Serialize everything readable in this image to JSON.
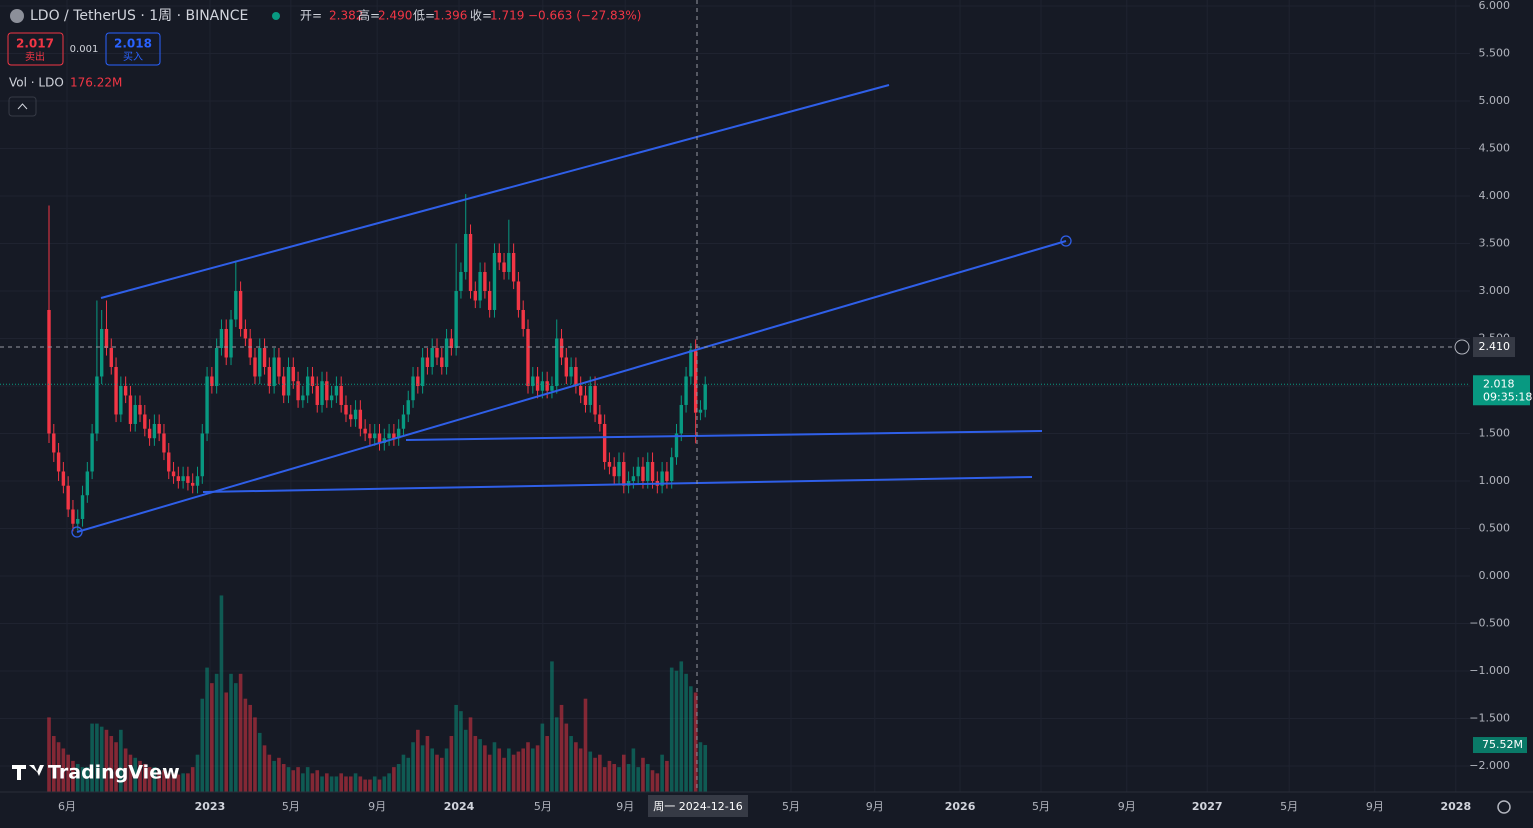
{
  "header": {
    "symbol": "LDO / TetherUS · 1周 · BINANCE",
    "ohlc": [
      {
        "label": "开=",
        "value": "2.382"
      },
      {
        "label": "高=",
        "value": "2.490"
      },
      {
        "label": "低=",
        "value": "1.396"
      },
      {
        "label": "收=",
        "value": "1.719"
      }
    ],
    "change": "−0.663 (−27.83%)"
  },
  "trade": {
    "sell_price": "2.017",
    "sell": "卖出",
    "spread": "0.001",
    "buy_price": "2.018",
    "buy": "买入"
  },
  "volume_legend": {
    "name": "Vol · LDO",
    "value": "176.22M"
  },
  "logo": "TradingView",
  "chart_data": {
    "type": "candlestick",
    "up_color": "#089981",
    "down_color": "#f23645",
    "open": [
      2.8,
      1.5,
      1.3,
      1.1,
      0.95,
      0.7,
      0.55,
      0.6,
      0.85,
      1.1,
      1.5,
      2.1,
      2.6,
      2.4,
      2.2,
      1.7,
      2.0,
      1.9,
      1.6,
      1.8,
      1.7,
      1.55,
      1.45,
      1.6,
      1.5,
      1.3,
      1.1,
      1.05,
      1.0,
      1.05,
      0.98,
      0.95,
      1.05,
      1.5,
      2.1,
      2.0,
      2.4,
      2.6,
      2.3,
      2.7,
      3.0,
      2.6,
      2.5,
      2.3,
      2.1,
      2.4,
      2.2,
      2.0,
      2.3,
      2.1,
      1.9,
      2.2,
      2.05,
      1.85,
      1.9,
      2.1,
      2.0,
      1.8,
      2.05,
      1.85,
      1.9,
      2.0,
      1.8,
      1.7,
      1.65,
      1.75,
      1.55,
      1.5,
      1.45,
      1.5,
      1.4,
      1.45,
      1.5,
      1.45,
      1.55,
      1.7,
      1.85,
      2.1,
      2.0,
      2.3,
      2.2,
      2.4,
      2.3,
      2.2,
      2.5,
      2.4,
      3.0,
      3.2,
      3.6,
      3.0,
      2.9,
      3.2,
      3.0,
      2.8,
      3.4,
      3.3,
      3.2,
      3.4,
      3.1,
      2.8,
      2.6,
      2.0,
      2.1,
      1.95,
      2.05,
      1.95,
      2.0,
      2.5,
      2.3,
      2.1,
      2.2,
      2.0,
      1.9,
      1.8,
      2.0,
      1.7,
      1.6,
      1.2,
      1.15,
      1.05,
      1.2,
      0.95,
      1.0,
      1.05,
      1.15,
      1.0,
      1.2,
      1.0,
      0.95,
      1.1,
      1.0,
      1.25,
      1.5,
      1.8,
      2.1,
      2.382,
      1.719,
      1.75
    ],
    "high": [
      3.9,
      1.6,
      1.4,
      1.2,
      1.05,
      0.8,
      0.7,
      0.95,
      1.2,
      1.6,
      2.9,
      2.8,
      2.9,
      2.5,
      2.3,
      2.1,
      2.1,
      2.0,
      1.9,
      1.9,
      1.8,
      1.65,
      1.7,
      1.7,
      1.6,
      1.4,
      1.2,
      1.15,
      1.15,
      1.15,
      1.08,
      1.15,
      1.6,
      2.2,
      2.2,
      2.5,
      2.7,
      2.7,
      2.8,
      3.32,
      3.1,
      2.7,
      2.6,
      2.4,
      2.5,
      2.5,
      2.3,
      2.4,
      2.4,
      2.2,
      2.3,
      2.3,
      2.15,
      2.0,
      2.2,
      2.2,
      2.1,
      2.15,
      2.15,
      2.0,
      2.1,
      2.1,
      1.9,
      1.8,
      1.85,
      1.85,
      1.65,
      1.6,
      1.6,
      1.6,
      1.55,
      1.6,
      1.6,
      1.65,
      1.8,
      1.95,
      2.2,
      2.2,
      2.4,
      2.4,
      2.5,
      2.5,
      2.4,
      2.6,
      2.6,
      3.5,
      3.3,
      4.02,
      3.7,
      3.1,
      3.3,
      3.3,
      3.1,
      3.5,
      3.5,
      3.4,
      3.75,
      3.5,
      3.2,
      2.9,
      2.7,
      2.2,
      2.2,
      2.15,
      2.15,
      2.1,
      2.7,
      2.6,
      2.4,
      2.3,
      2.3,
      2.1,
      2.0,
      2.1,
      2.1,
      1.8,
      1.7,
      1.3,
      1.25,
      1.3,
      1.3,
      1.1,
      1.15,
      1.25,
      1.25,
      1.3,
      1.3,
      1.1,
      1.2,
      1.2,
      1.35,
      1.6,
      1.9,
      2.2,
      2.45,
      2.49,
      1.85,
      2.1
    ],
    "low": [
      1.4,
      1.2,
      1.0,
      0.87,
      0.62,
      0.47,
      0.48,
      0.52,
      0.77,
      1.02,
      1.42,
      2.02,
      2.32,
      2.12,
      1.62,
      1.62,
      1.82,
      1.52,
      1.52,
      1.62,
      1.47,
      1.37,
      1.37,
      1.42,
      1.22,
      1.02,
      0.97,
      0.92,
      0.92,
      0.9,
      0.87,
      0.87,
      0.97,
      1.42,
      1.92,
      1.92,
      2.32,
      2.22,
      2.22,
      2.62,
      2.52,
      2.42,
      2.22,
      2.02,
      2.02,
      2.12,
      1.92,
      1.92,
      2.02,
      1.82,
      1.82,
      1.97,
      1.77,
      1.77,
      1.82,
      1.92,
      1.72,
      1.72,
      1.77,
      1.77,
      1.82,
      1.72,
      1.62,
      1.57,
      1.57,
      1.47,
      1.42,
      1.37,
      1.37,
      1.32,
      1.32,
      1.37,
      1.37,
      1.37,
      1.47,
      1.62,
      1.77,
      1.92,
      1.92,
      2.12,
      2.12,
      2.22,
      2.12,
      2.12,
      2.32,
      2.32,
      2.92,
      3.12,
      2.92,
      2.82,
      2.82,
      2.92,
      2.72,
      2.72,
      3.22,
      3.12,
      3.12,
      3.02,
      2.72,
      2.52,
      1.92,
      1.92,
      1.87,
      1.87,
      1.87,
      1.87,
      1.92,
      2.22,
      2.02,
      2.02,
      1.92,
      1.82,
      1.72,
      1.72,
      1.62,
      1.52,
      1.12,
      1.07,
      0.97,
      0.97,
      0.87,
      0.87,
      0.92,
      0.97,
      0.92,
      0.92,
      0.92,
      0.87,
      0.87,
      0.92,
      0.92,
      1.17,
      1.42,
      1.72,
      2.02,
      1.396,
      1.64,
      1.67
    ],
    "close": [
      1.5,
      1.3,
      1.1,
      0.95,
      0.7,
      0.55,
      0.6,
      0.85,
      1.1,
      1.5,
      2.1,
      2.6,
      2.4,
      2.2,
      1.7,
      2.0,
      1.9,
      1.6,
      1.8,
      1.7,
      1.55,
      1.45,
      1.6,
      1.5,
      1.3,
      1.1,
      1.05,
      1.0,
      1.05,
      0.98,
      0.95,
      1.05,
      1.5,
      2.1,
      2.0,
      2.4,
      2.6,
      2.3,
      2.7,
      3.0,
      2.6,
      2.5,
      2.3,
      2.1,
      2.4,
      2.2,
      2.0,
      2.3,
      2.1,
      1.9,
      2.2,
      2.05,
      1.85,
      1.9,
      2.1,
      2.0,
      1.8,
      2.05,
      1.85,
      1.9,
      2.0,
      1.8,
      1.7,
      1.65,
      1.75,
      1.55,
      1.5,
      1.45,
      1.5,
      1.4,
      1.45,
      1.5,
      1.45,
      1.55,
      1.7,
      1.85,
      2.1,
      2.0,
      2.3,
      2.2,
      2.4,
      2.3,
      2.2,
      2.5,
      2.4,
      3.0,
      3.2,
      3.6,
      3.0,
      2.9,
      3.2,
      3.0,
      2.8,
      3.4,
      3.3,
      3.2,
      3.4,
      3.1,
      2.8,
      2.6,
      2.0,
      2.1,
      1.95,
      2.05,
      1.95,
      2.0,
      2.5,
      2.3,
      2.1,
      2.2,
      2.0,
      1.9,
      1.8,
      2.0,
      1.7,
      1.6,
      1.2,
      1.15,
      1.05,
      1.2,
      0.95,
      1.0,
      1.05,
      1.15,
      1.0,
      1.2,
      1.0,
      0.95,
      1.1,
      1.0,
      1.25,
      1.5,
      1.8,
      2.1,
      2.382,
      1.719,
      1.75,
      2.018
    ],
    "volume": [
      120,
      90,
      80,
      70,
      60,
      50,
      45,
      40,
      40,
      110,
      110,
      105,
      100,
      90,
      80,
      100,
      70,
      60,
      55,
      50,
      45,
      40,
      40,
      35,
      35,
      30,
      30,
      28,
      30,
      30,
      40,
      60,
      150,
      200,
      175,
      190,
      316,
      160,
      190,
      175,
      190,
      150,
      140,
      120,
      95,
      75,
      60,
      50,
      55,
      45,
      40,
      35,
      40,
      30,
      40,
      30,
      35,
      25,
      30,
      25,
      25,
      30,
      25,
      25,
      30,
      25,
      20,
      20,
      25,
      20,
      25,
      30,
      40,
      45,
      60,
      55,
      80,
      100,
      75,
      90,
      70,
      60,
      55,
      70,
      90,
      140,
      130,
      100,
      120,
      90,
      85,
      75,
      60,
      80,
      70,
      55,
      70,
      60,
      65,
      70,
      80,
      70,
      75,
      110,
      90,
      210,
      120,
      140,
      110,
      90,
      80,
      70,
      150,
      65,
      55,
      60,
      40,
      50,
      45,
      40,
      60,
      45,
      70,
      40,
      55,
      45,
      35,
      30,
      60,
      50,
      200,
      195,
      210,
      190,
      170,
      160,
      80,
      75.52
    ],
    "volume_label": "75.52M",
    "volume_ylim": [
      0,
      500
    ],
    "ylim": [
      -2.274,
      6.063
    ],
    "yticks": [
      {
        "value": 6,
        "label": "6.000"
      },
      {
        "value": 5.5,
        "label": "5.500"
      },
      {
        "value": 5,
        "label": "5.000"
      },
      {
        "value": 4.5,
        "label": "4.500"
      },
      {
        "value": 4,
        "label": "4.000"
      },
      {
        "value": 3.5,
        "label": "3.500"
      },
      {
        "value": 3,
        "label": "3.000"
      },
      {
        "value": 2.5,
        "label": "2.500"
      },
      {
        "value": 2,
        "label": "2.000"
      },
      {
        "value": 1.5,
        "label": "1.500"
      },
      {
        "value": 1,
        "label": "1.000"
      },
      {
        "value": 0.5,
        "label": "0.500"
      },
      {
        "value": 0,
        "label": "0.000"
      },
      {
        "value": -0.5,
        "label": "−0.500"
      },
      {
        "value": -1,
        "label": "−1.000"
      },
      {
        "value": -1.5,
        "label": "−1.500"
      },
      {
        "value": -2,
        "label": "−2.000"
      }
    ],
    "xlim": [
      -10.23,
      296.66
    ],
    "xticks": [
      {
        "value": 3.76,
        "label": "6月"
      },
      {
        "value": 33.6,
        "label": "2023"
      },
      {
        "value": 50.5,
        "label": "5月"
      },
      {
        "value": 68.5,
        "label": "9月"
      },
      {
        "value": 85.6,
        "label": "2024"
      },
      {
        "value": 103.1,
        "label": "5月"
      },
      {
        "value": 120.3,
        "label": "9月"
      },
      {
        "value": 154.9,
        "label": "5月"
      },
      {
        "value": 172.4,
        "label": "9月"
      },
      {
        "value": 190.2,
        "label": "2026"
      },
      {
        "value": 207.1,
        "label": "5月"
      },
      {
        "value": 225,
        "label": "9月"
      },
      {
        "value": 241.8,
        "label": "2027"
      },
      {
        "value": 258.9,
        "label": "5月"
      },
      {
        "value": 276.8,
        "label": "9月"
      },
      {
        "value": 293.7,
        "label": "2028"
      }
    ],
    "grid": true,
    "crosshair_price": {
      "value": 2.41,
      "label": "2.410"
    },
    "crosshair_date": "周一  2024-12-16",
    "countdown": "09:35:18"
  }
}
